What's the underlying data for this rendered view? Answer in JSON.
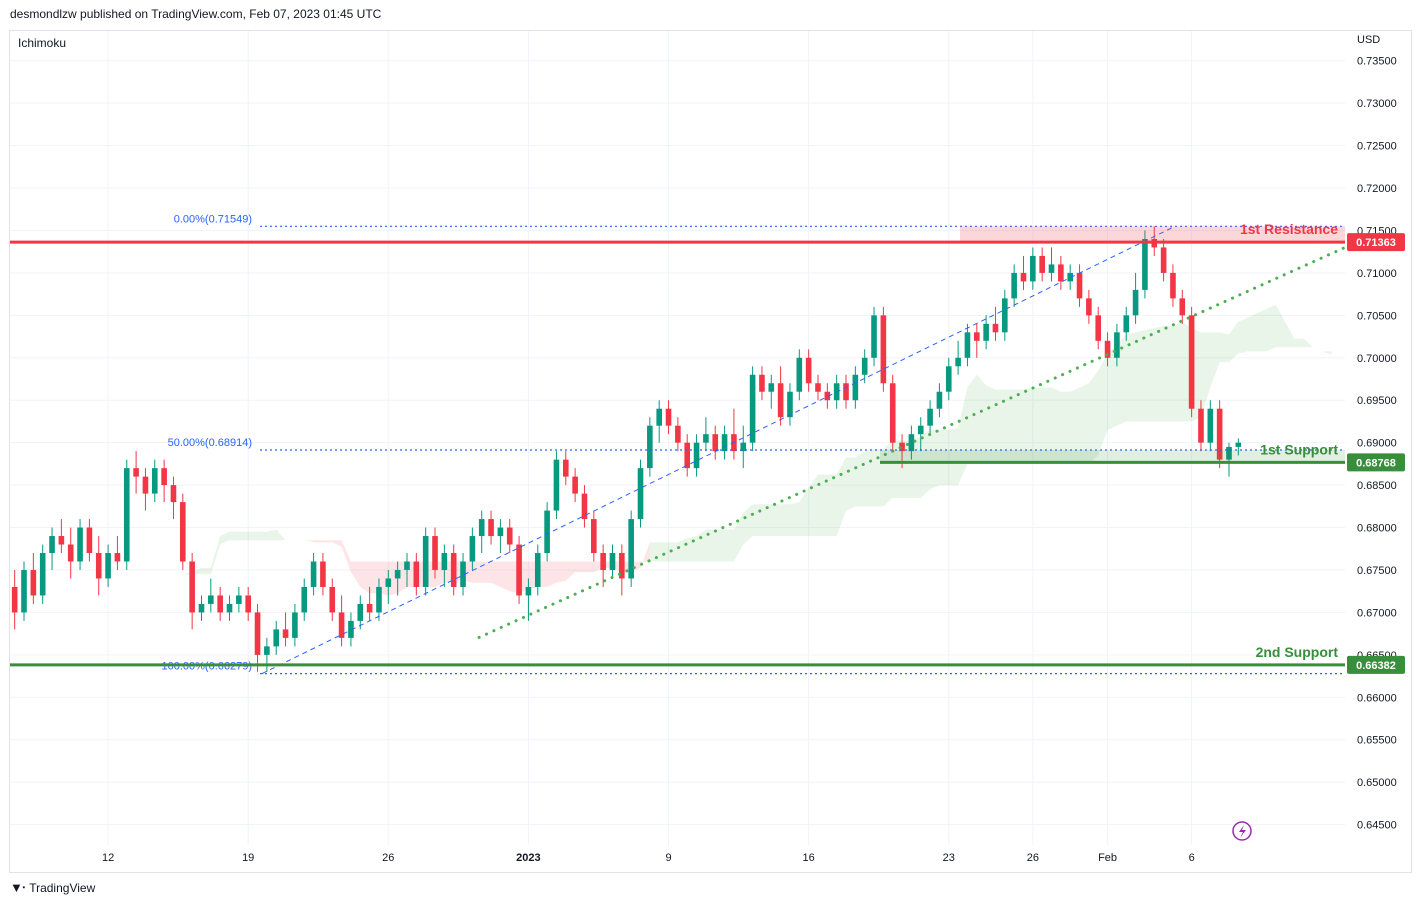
{
  "header": {
    "attribution": "desmondlzw published on TradingView.com, Feb 07, 2023 01:45 UTC"
  },
  "indicator": {
    "label": "Ichimoku"
  },
  "currency": "USD",
  "footer": {
    "brand": "TradingView"
  },
  "colors": {
    "up": "#089981",
    "down": "#f23645",
    "resistance": "#f23645",
    "support": "#388e3c",
    "fib": "#2962ff",
    "trend": "#4caf50"
  },
  "chart_data": {
    "type": "candlestick",
    "yaxis": {
      "ticks": [
        0.735,
        0.73,
        0.725,
        0.72,
        0.715,
        0.71,
        0.705,
        0.7,
        0.695,
        0.69,
        0.685,
        0.68,
        0.675,
        0.67,
        0.665,
        0.66,
        0.655,
        0.65,
        0.645
      ],
      "tick_labels": [
        "0.73500",
        "0.73000",
        "0.72500",
        "0.72000",
        "0.71500",
        "0.71000",
        "0.70500",
        "0.70000",
        "0.69500",
        "0.69000",
        "0.68500",
        "0.68000",
        "0.67500",
        "0.67000",
        "0.66500",
        "0.66000",
        "0.65500",
        "0.65000",
        "0.64500"
      ],
      "range": [
        0.6426,
        0.7385
      ]
    },
    "xaxis": {
      "labels": [
        "12",
        "19",
        "26",
        "2023",
        "9",
        "16",
        "23",
        "26",
        "Feb",
        "6"
      ],
      "label_bar_index": [
        10,
        25,
        40,
        55,
        70,
        85,
        100,
        109,
        117,
        126
      ],
      "bar_count": 140
    },
    "levels": [
      {
        "name": "1st Resistance",
        "value": 0.71363,
        "tag": "0.71363",
        "color": "#f23645"
      },
      {
        "name": "1st Support",
        "value": 0.68768,
        "tag": "0.68768",
        "color": "#388e3c"
      },
      {
        "name": "2nd Support",
        "value": 0.66382,
        "tag": "0.66382",
        "color": "#388e3c"
      }
    ],
    "fibonacci": [
      {
        "label": "0.00%(0.71549)",
        "value": 0.71549
      },
      {
        "label": "50.00%(0.68914)",
        "value": 0.68914
      },
      {
        "label": "100.00%(0.66279)",
        "value": 0.66279
      }
    ],
    "trendline": {
      "from": [
        54,
        0.668
      ],
      "to": [
        140,
        0.713
      ]
    },
    "candles": [
      [
        0.673,
        0.675,
        0.668,
        0.67
      ],
      [
        0.67,
        0.676,
        0.669,
        0.675
      ],
      [
        0.675,
        0.677,
        0.671,
        0.672
      ],
      [
        0.672,
        0.678,
        0.671,
        0.677
      ],
      [
        0.677,
        0.68,
        0.675,
        0.679
      ],
      [
        0.679,
        0.681,
        0.677,
        0.678
      ],
      [
        0.678,
        0.68,
        0.674,
        0.676
      ],
      [
        0.676,
        0.681,
        0.675,
        0.68
      ],
      [
        0.68,
        0.681,
        0.676,
        0.677
      ],
      [
        0.677,
        0.679,
        0.672,
        0.674
      ],
      [
        0.674,
        0.678,
        0.673,
        0.677
      ],
      [
        0.677,
        0.679,
        0.675,
        0.676
      ],
      [
        0.676,
        0.688,
        0.675,
        0.687
      ],
      [
        0.687,
        0.689,
        0.684,
        0.686
      ],
      [
        0.686,
        0.687,
        0.682,
        0.684
      ],
      [
        0.684,
        0.688,
        0.683,
        0.687
      ],
      [
        0.687,
        0.688,
        0.683,
        0.685
      ],
      [
        0.685,
        0.686,
        0.681,
        0.683
      ],
      [
        0.683,
        0.684,
        0.675,
        0.676
      ],
      [
        0.676,
        0.677,
        0.668,
        0.67
      ],
      [
        0.67,
        0.672,
        0.669,
        0.671
      ],
      [
        0.671,
        0.674,
        0.67,
        0.672
      ],
      [
        0.672,
        0.673,
        0.669,
        0.67
      ],
      [
        0.67,
        0.672,
        0.669,
        0.671
      ],
      [
        0.671,
        0.673,
        0.67,
        0.672
      ],
      [
        0.672,
        0.673,
        0.669,
        0.67
      ],
      [
        0.67,
        0.671,
        0.663,
        0.665
      ],
      [
        0.665,
        0.667,
        0.663,
        0.666
      ],
      [
        0.666,
        0.669,
        0.665,
        0.668
      ],
      [
        0.668,
        0.67,
        0.666,
        0.667
      ],
      [
        0.667,
        0.671,
        0.666,
        0.67
      ],
      [
        0.67,
        0.674,
        0.669,
        0.673
      ],
      [
        0.673,
        0.677,
        0.672,
        0.676
      ],
      [
        0.676,
        0.677,
        0.672,
        0.673
      ],
      [
        0.673,
        0.674,
        0.669,
        0.67
      ],
      [
        0.67,
        0.672,
        0.666,
        0.667
      ],
      [
        0.667,
        0.67,
        0.666,
        0.669
      ],
      [
        0.669,
        0.672,
        0.668,
        0.671
      ],
      [
        0.671,
        0.673,
        0.669,
        0.67
      ],
      [
        0.67,
        0.674,
        0.669,
        0.673
      ],
      [
        0.673,
        0.675,
        0.671,
        0.674
      ],
      [
        0.674,
        0.676,
        0.672,
        0.675
      ],
      [
        0.675,
        0.677,
        0.673,
        0.676
      ],
      [
        0.676,
        0.677,
        0.672,
        0.673
      ],
      [
        0.673,
        0.68,
        0.672,
        0.679
      ],
      [
        0.679,
        0.68,
        0.674,
        0.675
      ],
      [
        0.675,
        0.678,
        0.673,
        0.677
      ],
      [
        0.677,
        0.678,
        0.672,
        0.673
      ],
      [
        0.673,
        0.677,
        0.672,
        0.676
      ],
      [
        0.676,
        0.68,
        0.675,
        0.679
      ],
      [
        0.679,
        0.682,
        0.677,
        0.681
      ],
      [
        0.681,
        0.682,
        0.678,
        0.679
      ],
      [
        0.679,
        0.681,
        0.677,
        0.68
      ],
      [
        0.68,
        0.681,
        0.677,
        0.678
      ],
      [
        0.678,
        0.679,
        0.671,
        0.672
      ],
      [
        0.672,
        0.674,
        0.669,
        0.673
      ],
      [
        0.673,
        0.678,
        0.672,
        0.677
      ],
      [
        0.677,
        0.683,
        0.676,
        0.682
      ],
      [
        0.682,
        0.689,
        0.681,
        0.688
      ],
      [
        0.688,
        0.689,
        0.685,
        0.686
      ],
      [
        0.686,
        0.687,
        0.683,
        0.684
      ],
      [
        0.684,
        0.685,
        0.68,
        0.681
      ],
      [
        0.681,
        0.682,
        0.676,
        0.677
      ],
      [
        0.677,
        0.678,
        0.673,
        0.675
      ],
      [
        0.675,
        0.678,
        0.674,
        0.677
      ],
      [
        0.677,
        0.678,
        0.672,
        0.674
      ],
      [
        0.674,
        0.682,
        0.673,
        0.681
      ],
      [
        0.681,
        0.688,
        0.68,
        0.687
      ],
      [
        0.687,
        0.693,
        0.686,
        0.692
      ],
      [
        0.692,
        0.695,
        0.69,
        0.694
      ],
      [
        0.694,
        0.695,
        0.691,
        0.692
      ],
      [
        0.692,
        0.693,
        0.689,
        0.69
      ],
      [
        0.69,
        0.691,
        0.686,
        0.687
      ],
      [
        0.687,
        0.691,
        0.686,
        0.69
      ],
      [
        0.69,
        0.693,
        0.689,
        0.691
      ],
      [
        0.691,
        0.692,
        0.688,
        0.689
      ],
      [
        0.689,
        0.692,
        0.688,
        0.691
      ],
      [
        0.691,
        0.694,
        0.688,
        0.689
      ],
      [
        0.689,
        0.692,
        0.687,
        0.69
      ],
      [
        0.69,
        0.699,
        0.689,
        0.698
      ],
      [
        0.698,
        0.699,
        0.695,
        0.696
      ],
      [
        0.696,
        0.698,
        0.694,
        0.697
      ],
      [
        0.697,
        0.699,
        0.692,
        0.693
      ],
      [
        0.693,
        0.697,
        0.692,
        0.696
      ],
      [
        0.696,
        0.701,
        0.695,
        0.7
      ],
      [
        0.7,
        0.701,
        0.696,
        0.697
      ],
      [
        0.697,
        0.698,
        0.695,
        0.696
      ],
      [
        0.696,
        0.697,
        0.694,
        0.695
      ],
      [
        0.695,
        0.698,
        0.694,
        0.697
      ],
      [
        0.697,
        0.698,
        0.694,
        0.695
      ],
      [
        0.695,
        0.699,
        0.694,
        0.698
      ],
      [
        0.698,
        0.701,
        0.697,
        0.7
      ],
      [
        0.7,
        0.706,
        0.699,
        0.705
      ],
      [
        0.705,
        0.706,
        0.696,
        0.697
      ],
      [
        0.697,
        0.698,
        0.689,
        0.69
      ],
      [
        0.69,
        0.691,
        0.687,
        0.689
      ],
      [
        0.689,
        0.692,
        0.688,
        0.691
      ],
      [
        0.691,
        0.693,
        0.689,
        0.692
      ],
      [
        0.692,
        0.695,
        0.691,
        0.694
      ],
      [
        0.694,
        0.697,
        0.693,
        0.696
      ],
      [
        0.696,
        0.7,
        0.695,
        0.699
      ],
      [
        0.699,
        0.702,
        0.698,
        0.7
      ],
      [
        0.7,
        0.704,
        0.699,
        0.703
      ],
      [
        0.703,
        0.704,
        0.7,
        0.702
      ],
      [
        0.702,
        0.705,
        0.701,
        0.704
      ],
      [
        0.704,
        0.706,
        0.702,
        0.703
      ],
      [
        0.703,
        0.708,
        0.702,
        0.707
      ],
      [
        0.707,
        0.711,
        0.706,
        0.71
      ],
      [
        0.71,
        0.712,
        0.708,
        0.709
      ],
      [
        0.709,
        0.713,
        0.708,
        0.712
      ],
      [
        0.712,
        0.713,
        0.709,
        0.71
      ],
      [
        0.71,
        0.713,
        0.709,
        0.711
      ],
      [
        0.711,
        0.712,
        0.708,
        0.709
      ],
      [
        0.709,
        0.711,
        0.708,
        0.71
      ],
      [
        0.71,
        0.711,
        0.706,
        0.707
      ],
      [
        0.707,
        0.708,
        0.704,
        0.705
      ],
      [
        0.705,
        0.706,
        0.701,
        0.702
      ],
      [
        0.702,
        0.703,
        0.699,
        0.7
      ],
      [
        0.7,
        0.704,
        0.699,
        0.703
      ],
      [
        0.703,
        0.706,
        0.702,
        0.705
      ],
      [
        0.705,
        0.71,
        0.704,
        0.708
      ],
      [
        0.708,
        0.715,
        0.707,
        0.714
      ],
      [
        0.714,
        0.7155,
        0.712,
        0.713
      ],
      [
        0.713,
        0.714,
        0.709,
        0.71
      ],
      [
        0.71,
        0.711,
        0.706,
        0.707
      ],
      [
        0.707,
        0.708,
        0.704,
        0.705
      ],
      [
        0.705,
        0.706,
        0.693,
        0.694
      ],
      [
        0.694,
        0.695,
        0.689,
        0.69
      ],
      [
        0.69,
        0.695,
        0.689,
        0.694
      ],
      [
        0.694,
        0.695,
        0.687,
        0.688
      ],
      [
        0.688,
        0.69,
        0.686,
        0.6895
      ],
      [
        0.6895,
        0.6905,
        0.6885,
        0.69
      ]
    ]
  }
}
